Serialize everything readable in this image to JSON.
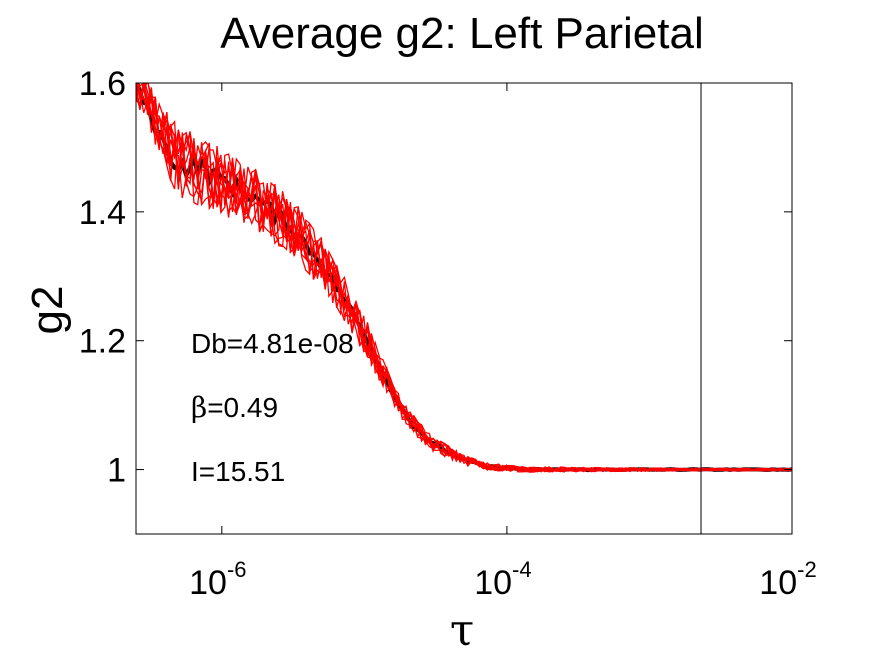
{
  "chart_data": {
    "type": "line",
    "title": "Average g2: Left Parietal",
    "xlabel": "τ",
    "ylabel": "g2",
    "x_scale": "log",
    "xlim": [
      2.5e-07,
      0.01
    ],
    "ylim": [
      0.9,
      1.6
    ],
    "x_ticks": [
      {
        "value": 1e-06,
        "base": "10",
        "exp": "-6"
      },
      {
        "value": 0.0001,
        "base": "10",
        "exp": "-4"
      },
      {
        "value": 0.01,
        "base": "10",
        "exp": "-2"
      }
    ],
    "y_ticks": [
      {
        "value": 1.0,
        "label": "1"
      },
      {
        "value": 1.2,
        "label": "1.2"
      },
      {
        "value": 1.4,
        "label": "1.4"
      },
      {
        "value": 1.6,
        "label": "1.6"
      }
    ],
    "vertical_line_x": 0.0023,
    "grid": false,
    "annotations": [
      {
        "text": "Db=4.81e-08"
      },
      {
        "symbol": "β",
        "text": "=0.49"
      },
      {
        "text": "I=15.51"
      }
    ],
    "fit_series": {
      "color": "#000000",
      "x": [
        2.5e-07,
        3e-07,
        4e-07,
        5e-07,
        7e-07,
        1e-06,
        1.5e-06,
        2e-06,
        3e-06,
        5e-06,
        7e-06,
        1e-05,
        1.5e-05,
        2e-05,
        3e-05,
        5e-05,
        7e-05,
        0.0001,
        0.00015,
        0.0002,
        0.0005,
        0.001,
        0.002,
        0.005,
        0.01
      ],
      "values": [
        1.6,
        1.56,
        1.5,
        1.47,
        1.47,
        1.45,
        1.43,
        1.41,
        1.38,
        1.32,
        1.27,
        1.21,
        1.13,
        1.08,
        1.04,
        1.015,
        1.005,
        1.002,
        1.0,
        1.0,
        1.0,
        1.0,
        1.0,
        1.0,
        1.0
      ]
    },
    "data_series": {
      "color": "#ff0000",
      "count": 10,
      "x": [
        2.5e-07,
        3e-07,
        4e-07,
        5e-07,
        7e-07,
        1e-06,
        1.5e-06,
        2e-06,
        3e-06,
        5e-06,
        7e-06,
        1e-05,
        1.5e-05,
        2e-05,
        3e-05,
        5e-05,
        7e-05,
        0.0001,
        0.00015,
        0.0002,
        0.0005,
        0.001,
        0.002,
        0.005,
        0.01
      ],
      "values": [
        1.6,
        1.57,
        1.51,
        1.48,
        1.47,
        1.45,
        1.43,
        1.41,
        1.38,
        1.32,
        1.27,
        1.21,
        1.13,
        1.08,
        1.04,
        1.015,
        1.005,
        1.002,
        1.0,
        1.0,
        1.0,
        1.0,
        1.0,
        1.0,
        1.0
      ],
      "noise_amplitude": [
        0.03,
        0.035,
        0.05,
        0.06,
        0.06,
        0.055,
        0.05,
        0.05,
        0.045,
        0.04,
        0.035,
        0.03,
        0.02,
        0.015,
        0.012,
        0.008,
        0.006,
        0.005,
        0.004,
        0.004,
        0.003,
        0.003,
        0.002,
        0.002,
        0.002
      ]
    }
  }
}
